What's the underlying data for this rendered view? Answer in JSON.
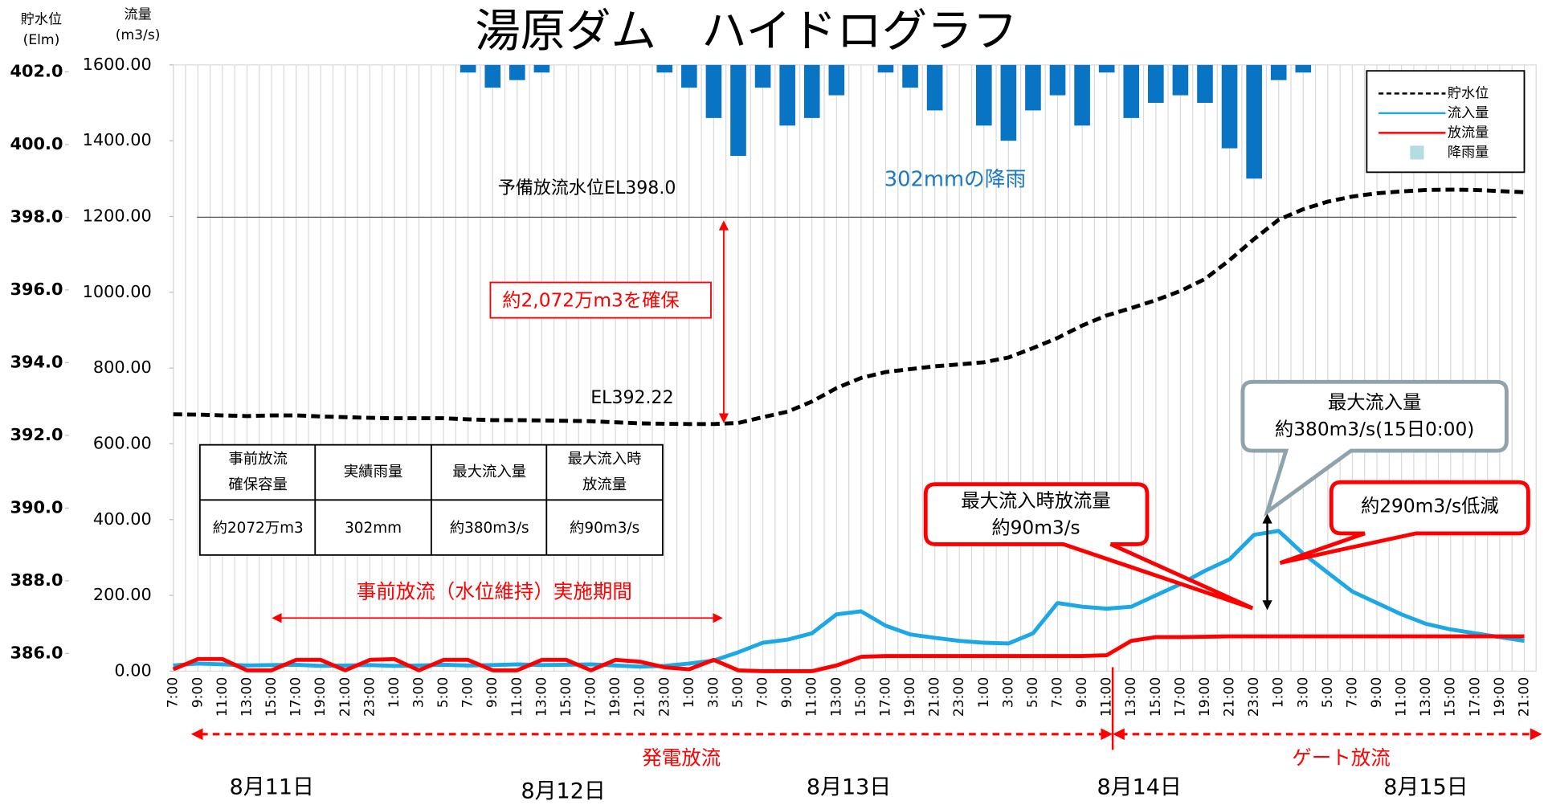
{
  "chart_data": {
    "type": "hydrograph",
    "title": "湯原ダム　ハイドログラフ",
    "y2_label": [
      "貯水位",
      "(Elm)"
    ],
    "y_label": [
      "流量",
      "(m3/s)"
    ],
    "categories": [
      "7:00",
      "9:00",
      "11:00",
      "13:00",
      "15:00",
      "17:00",
      "19:00",
      "21:00",
      "23:00",
      "1:00",
      "3:00",
      "5:00",
      "7:00",
      "9:00",
      "11:00",
      "13:00",
      "15:00",
      "17:00",
      "19:00",
      "21:00",
      "23:00",
      "1:00",
      "3:00",
      "5:00",
      "7:00",
      "9:00",
      "11:00",
      "13:00",
      "15:00",
      "17:00",
      "19:00",
      "21:00",
      "23:00",
      "1:00",
      "3:00",
      "5:00",
      "7:00",
      "9:00",
      "11:00",
      "13:00",
      "15:00",
      "17:00",
      "19:00",
      "21:00",
      "23:00",
      "1:00",
      "3:00",
      "5:00",
      "7:00",
      "9:00",
      "11:00",
      "13:00",
      "15:00",
      "17:00",
      "19:00",
      "21:00"
    ],
    "dates": [
      "8月11日",
      "8月12日",
      "8月13日",
      "8月14日",
      "8月15日"
    ],
    "ylim": [
      0,
      1600
    ],
    "yticks": [
      {
        "value": 0,
        "label": "0.00"
      },
      {
        "value": 200,
        "label": "200.00"
      },
      {
        "value": 400,
        "label": "400.00"
      },
      {
        "value": 600,
        "label": "600.00"
      },
      {
        "value": 800,
        "label": "800.00"
      },
      {
        "value": 1000,
        "label": "1000.00"
      },
      {
        "value": 1200,
        "label": "1200.00"
      },
      {
        "value": 1400,
        "label": "1400.00"
      },
      {
        "value": 1600,
        "label": "1600.00"
      }
    ],
    "y2lim": [
      386,
      402
    ],
    "y2ticks": [
      {
        "value": 386,
        "label": "386.0"
      },
      {
        "value": 388,
        "label": "388.0"
      },
      {
        "value": 390,
        "label": "390.0"
      },
      {
        "value": 392,
        "label": "392.0"
      },
      {
        "value": 394,
        "label": "394.0"
      },
      {
        "value": 396,
        "label": "396.0"
      },
      {
        "value": 398,
        "label": "398.0"
      },
      {
        "value": 400,
        "label": "400.0"
      },
      {
        "value": 402,
        "label": "402.0"
      }
    ],
    "y3lim": [
      0,
      80
    ],
    "grid": true,
    "series": [
      {
        "name": "貯水位",
        "color": "#000000",
        "axis": "y2",
        "style": "dashed",
        "values": [
          392.58,
          392.57,
          392.55,
          392.53,
          392.55,
          392.55,
          392.52,
          392.5,
          392.48,
          392.47,
          392.47,
          392.47,
          392.44,
          392.42,
          392.42,
          392.41,
          392.4,
          392.39,
          392.36,
          392.33,
          392.32,
          392.31,
          392.31,
          392.34,
          392.5,
          392.65,
          392.93,
          393.3,
          393.58,
          393.74,
          393.82,
          393.9,
          393.95,
          394.01,
          394.14,
          394.4,
          394.68,
          395.02,
          395.3,
          395.5,
          395.72,
          395.97,
          396.3,
          396.82,
          397.4,
          397.93,
          398.22,
          398.43,
          398.57,
          398.66,
          398.71,
          398.75,
          398.76,
          398.75,
          398.72,
          398.69
        ]
      },
      {
        "name": "流入量",
        "color": "#1ca7e6",
        "axis": "y",
        "style": "solid",
        "values": [
          15,
          20,
          18,
          15,
          16,
          17,
          14,
          15,
          16,
          14,
          15,
          17,
          15,
          16,
          18,
          16,
          17,
          18,
          15,
          12,
          14,
          20,
          28,
          50,
          75,
          83,
          100,
          150,
          158,
          120,
          97,
          88,
          80,
          75,
          73,
          100,
          180,
          170,
          165,
          170,
          200,
          230,
          265,
          295,
          360,
          370,
          310,
          260,
          210,
          180,
          150,
          125,
          110,
          100,
          90,
          80
        ]
      },
      {
        "name": "放流量",
        "color": "#ff0000",
        "axis": "y",
        "style": "solid",
        "values": [
          5,
          32,
          32,
          2,
          2,
          30,
          30,
          2,
          30,
          32,
          2,
          30,
          30,
          2,
          2,
          30,
          30,
          2,
          30,
          25,
          10,
          5,
          30,
          2,
          0,
          0,
          0,
          15,
          38,
          40,
          40,
          40,
          40,
          40,
          40,
          40,
          40,
          40,
          42,
          80,
          90,
          90,
          91,
          92,
          92,
          92,
          92,
          92,
          92,
          92,
          92,
          92,
          92,
          92,
          92,
          92
        ]
      },
      {
        "name": "降雨量",
        "color": "#0a74c4",
        "axis": "y3",
        "style": "bar",
        "legend_color": "#b4dde0",
        "values": [
          0,
          0,
          0,
          0,
          0,
          0,
          0,
          0,
          0,
          0,
          0,
          0,
          1,
          3,
          2,
          1,
          0,
          0,
          0,
          0,
          1,
          3,
          7,
          12,
          3,
          8,
          7,
          4,
          0,
          1,
          3,
          6,
          0,
          8,
          10,
          6,
          4,
          8,
          1,
          7,
          5,
          4,
          5,
          11,
          15,
          2,
          1,
          0,
          0,
          0,
          0,
          0,
          0,
          0,
          0,
          0
        ]
      }
    ],
    "reference_level": 398,
    "annotations": {
      "reference": "予備放流水位EL398.0",
      "rain_total": "302mmの降雨",
      "secured": "約2,072万m3を確保",
      "el_low": "EL392.22",
      "period": "事前放流（水位維持）実施期間",
      "power": "発電放流",
      "gate": "ゲート放流",
      "max_in": [
        "最大流入量",
        "約380m3/s(15日0:00)"
      ],
      "out_at_max": [
        "最大流入時放流量",
        "約90m3/s"
      ],
      "reduction": "約290m3/s低減"
    },
    "table": {
      "headers": [
        [
          "事前放流",
          "確保容量"
        ],
        [
          "実績雨量"
        ],
        [
          "最大流入量"
        ],
        [
          "最大流入時",
          "放流量"
        ]
      ],
      "row": [
        "約2072万m3",
        "302mm",
        "約380m3/s",
        "約90m3/s"
      ]
    }
  }
}
